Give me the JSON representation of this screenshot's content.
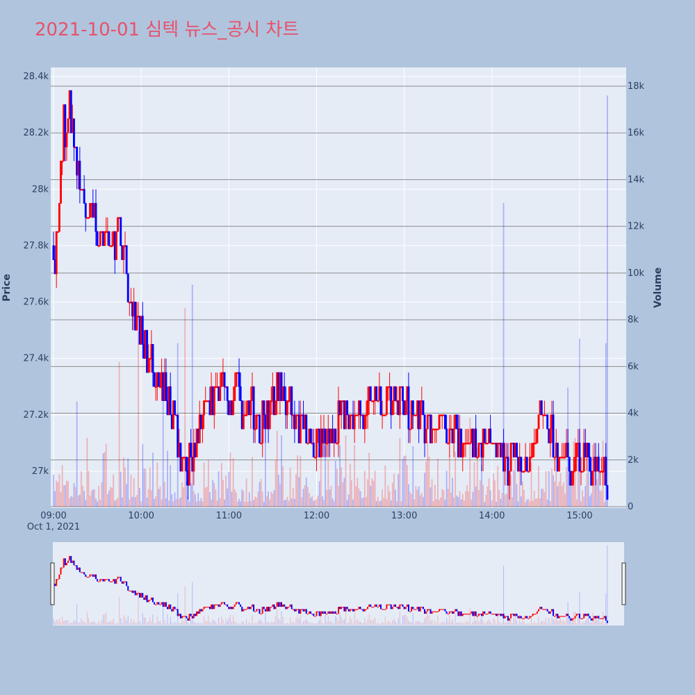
{
  "title": "2021-10-01 심텍 뉴스_공시 차트",
  "colors": {
    "page_bg": "#b0c4de",
    "plot_bg": "#e5ecf6",
    "up": "#ff0000",
    "down": "#0000ff",
    "title": "#e8516a",
    "text": "#2a3f5f"
  },
  "chart_data": {
    "type": "candlestick+volume",
    "date_label": "Oct 1, 2021",
    "x_ticks": [
      "09:00",
      "10:00",
      "11:00",
      "12:00",
      "13:00",
      "14:00",
      "15:00"
    ],
    "price_axis": {
      "title": "Price",
      "range": [
        26880,
        28420
      ],
      "ticks": [
        27000,
        27200,
        27400,
        27600,
        27800,
        28000,
        28200,
        28400
      ],
      "tick_labels": [
        "27k",
        "27.2k",
        "27.4k",
        "27.6k",
        "27.8k",
        "28k",
        "28.2k",
        "28.4k"
      ]
    },
    "volume_axis": {
      "title": "Volume",
      "range": [
        0,
        18000
      ],
      "ticks": [
        0,
        2000,
        4000,
        6000,
        8000,
        10000,
        12000,
        14000,
        16000,
        18000
      ],
      "tick_labels": [
        "0",
        "2k",
        "4k",
        "6k",
        "8k",
        "10k",
        "12k",
        "14k",
        "16k",
        "18k"
      ]
    },
    "price_path": [
      [
        "09:00",
        27800
      ],
      [
        "09:01",
        27700
      ],
      [
        "09:03",
        27900
      ],
      [
        "09:05",
        28050
      ],
      [
        "09:07",
        28250
      ],
      [
        "09:09",
        28150
      ],
      [
        "09:11",
        28300
      ],
      [
        "09:13",
        28200
      ],
      [
        "09:16",
        28050
      ],
      [
        "09:20",
        28000
      ],
      [
        "09:23",
        27850
      ],
      [
        "09:27",
        27950
      ],
      [
        "09:30",
        27800
      ],
      [
        "09:35",
        27850
      ],
      [
        "09:40",
        27800
      ],
      [
        "09:45",
        27850
      ],
      [
        "09:50",
        27700
      ],
      [
        "09:55",
        27550
      ],
      [
        "10:00",
        27500
      ],
      [
        "10:05",
        27400
      ],
      [
        "10:10",
        27350
      ],
      [
        "10:15",
        27300
      ],
      [
        "10:20",
        27250
      ],
      [
        "10:25",
        27100
      ],
      [
        "10:30",
        27000
      ],
      [
        "10:35",
        27050
      ],
      [
        "10:40",
        27200
      ],
      [
        "10:45",
        27250
      ],
      [
        "10:50",
        27250
      ],
      [
        "10:55",
        27300
      ],
      [
        "11:00",
        27250
      ],
      [
        "11:05",
        27300
      ],
      [
        "11:10",
        27200
      ],
      [
        "11:15",
        27250
      ],
      [
        "11:20",
        27150
      ],
      [
        "11:25",
        27200
      ],
      [
        "11:30",
        27250
      ],
      [
        "11:35",
        27300
      ],
      [
        "11:40",
        27250
      ],
      [
        "11:45",
        27200
      ],
      [
        "11:50",
        27150
      ],
      [
        "11:55",
        27100
      ],
      [
        "12:00",
        27100
      ],
      [
        "12:10",
        27150
      ],
      [
        "12:20",
        27200
      ],
      [
        "12:30",
        27200
      ],
      [
        "12:40",
        27250
      ],
      [
        "12:50",
        27250
      ],
      [
        "13:00",
        27250
      ],
      [
        "13:05",
        27200
      ],
      [
        "13:10",
        27200
      ],
      [
        "13:15",
        27150
      ],
      [
        "13:20",
        27150
      ],
      [
        "13:30",
        27150
      ],
      [
        "13:40",
        27100
      ],
      [
        "13:50",
        27100
      ],
      [
        "14:00",
        27100
      ],
      [
        "14:05",
        27050
      ],
      [
        "14:10",
        27000
      ],
      [
        "14:15",
        27100
      ],
      [
        "14:20",
        27050
      ],
      [
        "14:25",
        27050
      ],
      [
        "14:30",
        27150
      ],
      [
        "14:35",
        27200
      ],
      [
        "14:40",
        27150
      ],
      [
        "14:45",
        27050
      ],
      [
        "14:50",
        27100
      ],
      [
        "14:55",
        27000
      ],
      [
        "15:00",
        27050
      ],
      [
        "15:05",
        27050
      ],
      [
        "15:10",
        27000
      ],
      [
        "15:15",
        27000
      ],
      [
        "15:19",
        26950
      ]
    ],
    "volume_spikes": [
      [
        "09:16",
        4500
      ],
      [
        "09:45",
        6200
      ],
      [
        "09:58",
        7500
      ],
      [
        "10:15",
        5000
      ],
      [
        "10:25",
        7000
      ],
      [
        "10:30",
        8500
      ],
      [
        "10:35",
        9500
      ],
      [
        "14:08",
        13000
      ],
      [
        "13:45",
        3800
      ],
      [
        "14:52",
        5100
      ],
      [
        "15:00",
        7200
      ],
      [
        "15:18",
        7000
      ],
      [
        "15:19",
        17600
      ]
    ]
  }
}
